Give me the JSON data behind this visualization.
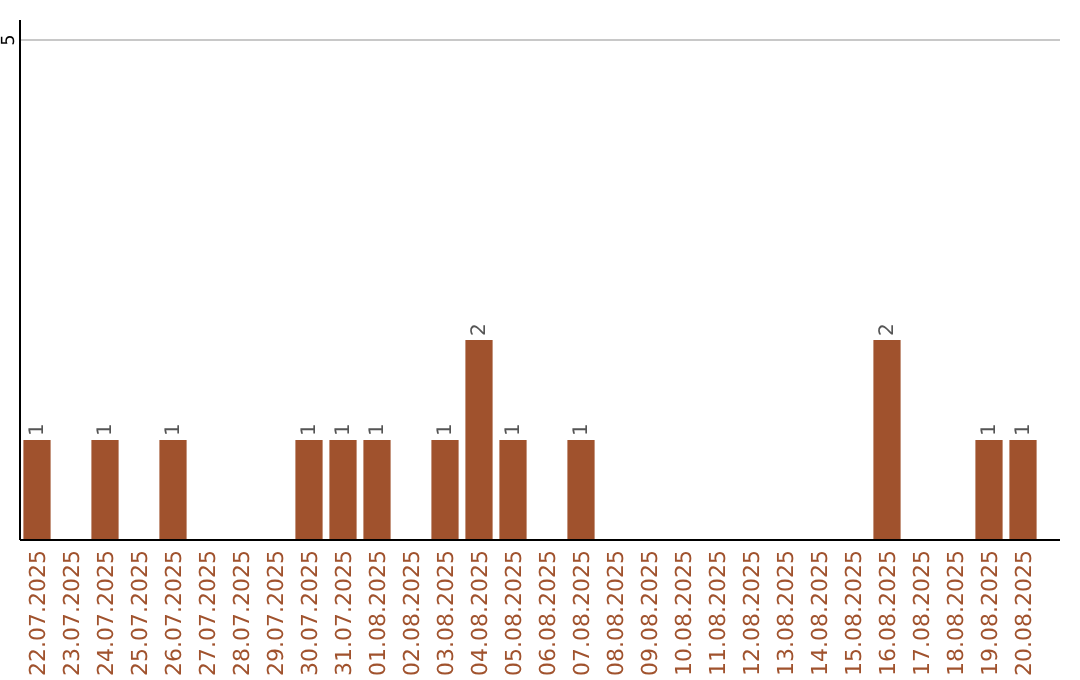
{
  "chart_data": {
    "type": "bar",
    "categories": [
      "22.07.2025",
      "23.07.2025",
      "24.07.2025",
      "25.07.2025",
      "26.07.2025",
      "27.07.2025",
      "28.07.2025",
      "29.07.2025",
      "30.07.2025",
      "31.07.2025",
      "01.08.2025",
      "02.08.2025",
      "03.08.2025",
      "04.08.2025",
      "05.08.2025",
      "06.08.2025",
      "07.08.2025",
      "08.08.2025",
      "09.08.2025",
      "10.08.2025",
      "11.08.2025",
      "12.08.2025",
      "13.08.2025",
      "14.08.2025",
      "15.08.2025",
      "16.08.2025",
      "17.08.2025",
      "18.08.2025",
      "19.08.2025",
      "20.08.2025"
    ],
    "values": [
      1,
      0,
      1,
      0,
      1,
      0,
      0,
      0,
      1,
      1,
      1,
      0,
      1,
      2,
      1,
      0,
      1,
      0,
      0,
      0,
      0,
      0,
      0,
      0,
      0,
      2,
      0,
      0,
      1,
      1
    ],
    "value_labels": [
      "1",
      null,
      "1",
      null,
      "1",
      null,
      null,
      null,
      "1",
      "1",
      "1",
      null,
      "1",
      "2",
      "1",
      null,
      "1",
      null,
      null,
      null,
      null,
      null,
      null,
      null,
      null,
      "2",
      null,
      null,
      "1",
      "1"
    ],
    "color": "#a0522d",
    "ylim": [
      0,
      5
    ],
    "yticks": [
      5
    ],
    "ref_lines": [
      {
        "axis": "y",
        "value": 5,
        "color": "#c8c8c8"
      }
    ]
  }
}
